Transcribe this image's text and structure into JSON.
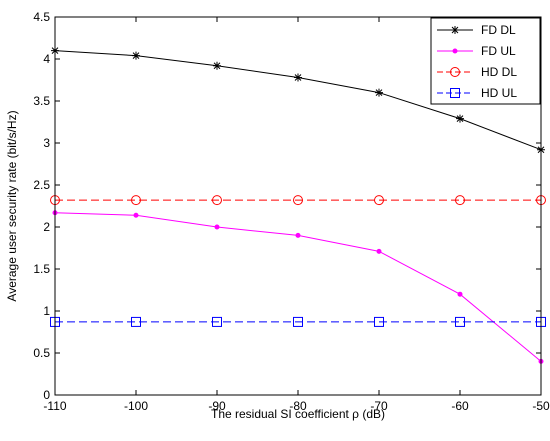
{
  "chart_data": {
    "type": "line",
    "xlabel": "The residual SI coefficient ρ (dB)",
    "ylabel": "Average user security rate (bit/s/Hz)",
    "xlim": [
      -110,
      -50
    ],
    "ylim": [
      0,
      4.5
    ],
    "x_ticks": [
      "-110",
      "-100",
      "-90",
      "-80",
      "-70",
      "-60",
      "-50"
    ],
    "y_ticks": [
      "0",
      "0.5",
      "1",
      "1.5",
      "2",
      "2.5",
      "3",
      "3.5",
      "4",
      "4.5"
    ],
    "x_tick_values": [
      -110,
      -100,
      -90,
      -80,
      -70,
      -60,
      -50
    ],
    "y_tick_values": [
      0,
      0.5,
      1,
      1.5,
      2,
      2.5,
      3,
      3.5,
      4,
      4.5
    ],
    "grid": false,
    "legend_position": "top-right",
    "x": [
      -110,
      -100,
      -90,
      -80,
      -70,
      -60,
      -50
    ],
    "series": [
      {
        "name": "FD DL",
        "values": [
          4.1,
          4.04,
          3.92,
          3.78,
          3.6,
          3.29,
          2.92
        ],
        "color": "#000000",
        "marker": "star",
        "dash": "solid"
      },
      {
        "name": "FD UL",
        "values": [
          2.17,
          2.14,
          2.0,
          1.9,
          1.71,
          1.2,
          0.4
        ],
        "color": "#ff00ff",
        "marker": "dot",
        "dash": "solid"
      },
      {
        "name": "HD DL",
        "values": [
          2.32,
          2.32,
          2.32,
          2.32,
          2.32,
          2.32,
          2.32
        ],
        "color": "#ff0000",
        "marker": "circle",
        "dash": "dashed"
      },
      {
        "name": "HD UL",
        "values": [
          0.87,
          0.87,
          0.87,
          0.87,
          0.87,
          0.87,
          0.87
        ],
        "color": "#0000ff",
        "marker": "square",
        "dash": "dashed"
      }
    ]
  }
}
